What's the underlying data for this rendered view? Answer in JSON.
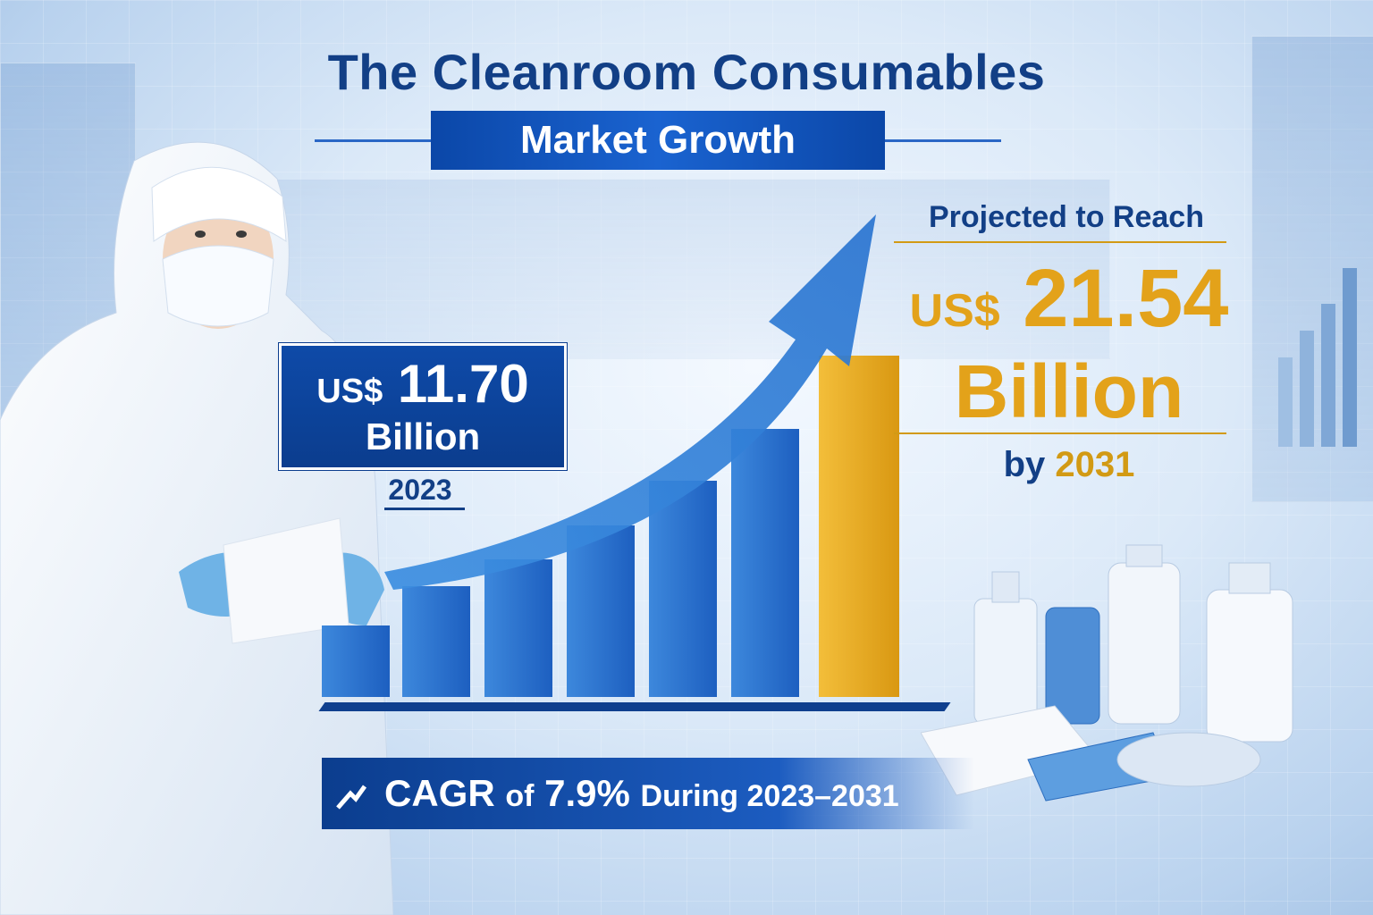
{
  "header": {
    "title_line1": "The Cleanroom Consumables",
    "title_line2": "Market Growth"
  },
  "start_value": {
    "currency": "US$",
    "amount": "11.70",
    "unit": "Billion",
    "year": "2023"
  },
  "projection": {
    "label": "Projected to Reach",
    "currency": "US$",
    "amount": "21.54",
    "unit": "Billion",
    "by_prefix": "by",
    "year": "2031"
  },
  "cagr": {
    "prefix": "CAGR",
    "of": "of",
    "rate": "7.9%",
    "period": "During 2023–2031"
  },
  "colors": {
    "navy": "#123f86",
    "blue": "#1a63d0",
    "gold": "#e3a21a",
    "background": "#dbe9f8"
  },
  "icons": [
    "trend-arrow-icon",
    "growth-arrow-icon"
  ]
}
